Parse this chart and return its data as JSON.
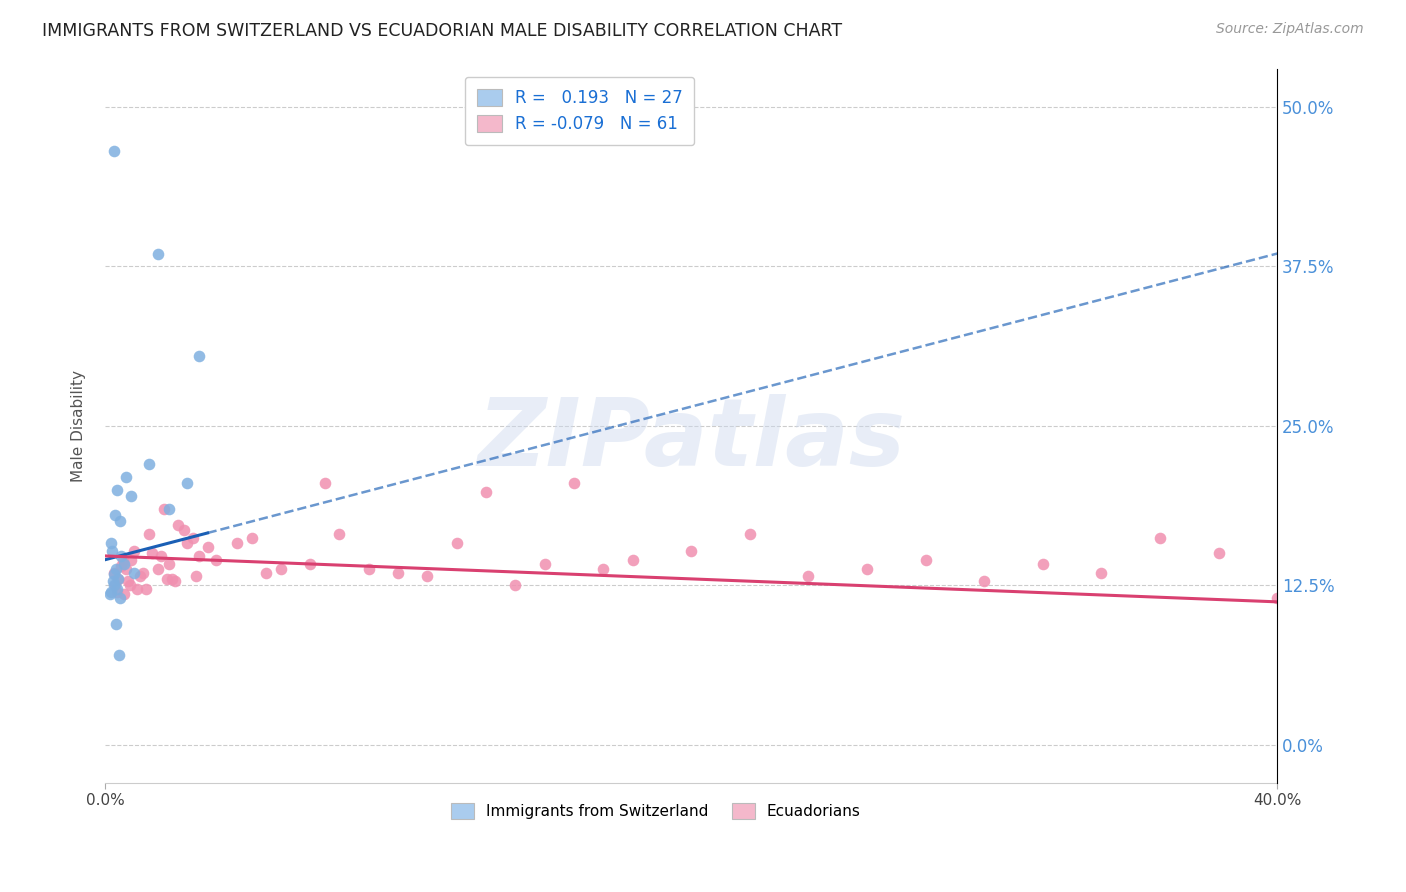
{
  "title": "IMMIGRANTS FROM SWITZERLAND VS ECUADORIAN MALE DISABILITY CORRELATION CHART",
  "source": "Source: ZipAtlas.com",
  "ylabel": "Male Disability",
  "ytick_vals": [
    0.0,
    12.5,
    25.0,
    37.5,
    50.0
  ],
  "xlim": [
    0.0,
    40.0
  ],
  "ylim": [
    -3.0,
    53.0
  ],
  "r_swiss": 0.193,
  "n_swiss": 27,
  "r_ecuador": -0.079,
  "n_ecuador": 61,
  "swiss_line_color": "#1a5fb5",
  "ecuador_line_color": "#d94070",
  "swiss_dot_color": "#7fb0e0",
  "ecuador_dot_color": "#f090b0",
  "swiss_color_patch": "#aaccee",
  "ecuador_color_patch": "#f4b8cb",
  "swiss_x": [
    0.3,
    1.5,
    2.8,
    0.4,
    2.2,
    0.7,
    0.9,
    0.5,
    0.35,
    0.2,
    0.25,
    0.55,
    0.65,
    0.38,
    0.3,
    0.45,
    0.28,
    0.32,
    0.42,
    0.22,
    0.18,
    0.52,
    1.0,
    0.38,
    3.2,
    0.48,
    1.8
  ],
  "swiss_y": [
    46.5,
    22.0,
    20.5,
    20.0,
    18.5,
    21.0,
    19.5,
    17.5,
    18.0,
    15.8,
    15.2,
    14.8,
    14.2,
    13.8,
    13.4,
    13.0,
    12.8,
    12.5,
    12.2,
    12.0,
    11.8,
    11.5,
    13.5,
    9.5,
    30.5,
    7.0,
    38.5
  ],
  "ecuador_x": [
    0.3,
    0.45,
    0.6,
    0.8,
    1.0,
    1.2,
    1.5,
    1.8,
    2.0,
    2.2,
    2.5,
    2.8,
    3.0,
    3.2,
    3.5,
    0.35,
    0.55,
    0.7,
    0.9,
    1.1,
    1.3,
    1.6,
    1.9,
    2.1,
    2.4,
    2.7,
    3.1,
    3.8,
    4.5,
    5.0,
    5.5,
    6.0,
    7.0,
    7.5,
    8.0,
    9.0,
    10.0,
    11.0,
    12.0,
    13.0,
    14.0,
    15.0,
    16.0,
    17.0,
    18.0,
    20.0,
    22.0,
    24.0,
    26.0,
    28.0,
    30.0,
    32.0,
    34.0,
    36.0,
    38.0,
    40.0,
    0.4,
    0.65,
    0.85,
    1.4,
    2.3
  ],
  "ecuador_y": [
    13.5,
    13.0,
    14.5,
    12.8,
    15.2,
    13.2,
    16.5,
    13.8,
    18.5,
    14.2,
    17.2,
    15.8,
    16.2,
    14.8,
    15.5,
    12.5,
    14.0,
    13.8,
    14.5,
    12.2,
    13.5,
    15.0,
    14.8,
    13.0,
    12.8,
    16.8,
    13.2,
    14.5,
    15.8,
    16.2,
    13.5,
    13.8,
    14.2,
    20.5,
    16.5,
    13.8,
    13.5,
    13.2,
    15.8,
    19.8,
    12.5,
    14.2,
    20.5,
    13.8,
    14.5,
    15.2,
    16.5,
    13.2,
    13.8,
    14.5,
    12.8,
    14.2,
    13.5,
    16.2,
    15.0,
    11.5,
    12.0,
    11.8,
    12.5,
    12.2,
    13.0
  ],
  "swiss_line_x": [
    0.0,
    40.0
  ],
  "swiss_line_y_start": 14.5,
  "swiss_line_y_end": 38.5,
  "ecuador_line_y_start": 14.8,
  "ecuador_line_y_end": 11.2,
  "swiss_solid_end_x": 3.5,
  "watermark": "ZIPatlas"
}
